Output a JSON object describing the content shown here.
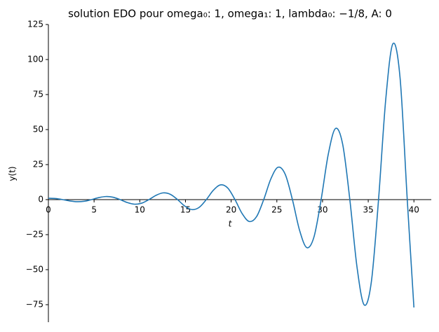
{
  "chart_data": {
    "type": "line",
    "title": "solution EDO pour omega₀: 1, omega₁: 1, lambda₀: −1/8, A: 0",
    "x_label": "t",
    "y_label": "y(t)",
    "x": [
      0,
      0.785,
      1.571,
      2.356,
      3.142,
      3.927,
      4.712,
      5.498,
      6.283,
      7.069,
      7.854,
      8.639,
      9.425,
      10.21,
      10.996,
      11.781,
      12.566,
      13.352,
      14.137,
      14.923,
      15.708,
      16.493,
      17.279,
      18.064,
      18.85,
      19.635,
      20.42,
      21.206,
      21.991,
      22.777,
      23.562,
      24.347,
      25.133,
      25.918,
      26.704,
      27.489,
      28.274,
      29.06,
      29.845,
      30.631,
      31.416,
      32.201,
      32.987,
      33.772,
      34.558,
      35.343,
      36.128,
      36.914,
      37.699,
      38.485,
      39.27,
      40
    ],
    "series": [
      {
        "color": "#1f77b4",
        "values": [
          1,
          0.78,
          0,
          -0.95,
          -1.48,
          -1.16,
          0,
          1.41,
          2.19,
          1.71,
          0,
          -2.08,
          -3.25,
          -2.53,
          0,
          3.08,
          4.81,
          3.75,
          0,
          -4.57,
          -7.12,
          -5.56,
          0,
          6.76,
          10.55,
          8.23,
          0,
          -10.01,
          -15.62,
          -12.18,
          0,
          14.83,
          23.14,
          18.04,
          0,
          -21.96,
          -34.26,
          -26.72,
          0,
          32.52,
          50.74,
          39.58,
          0,
          -48.16,
          -75.15,
          -58.61,
          0,
          71.34,
          111.3,
          86.82,
          0,
          -77
        ]
      }
    ],
    "xlim": [
      0,
      41.9
    ],
    "ylim": [
      -87.5,
      125
    ],
    "xticks": [
      0,
      5,
      10,
      15,
      20,
      25,
      30,
      35,
      40
    ],
    "yticks": [
      {
        "value": -75,
        "label": "−75"
      },
      {
        "value": -50,
        "label": "−50"
      },
      {
        "value": -25,
        "label": "−25"
      },
      0,
      25,
      50,
      75,
      100,
      125
    ]
  }
}
